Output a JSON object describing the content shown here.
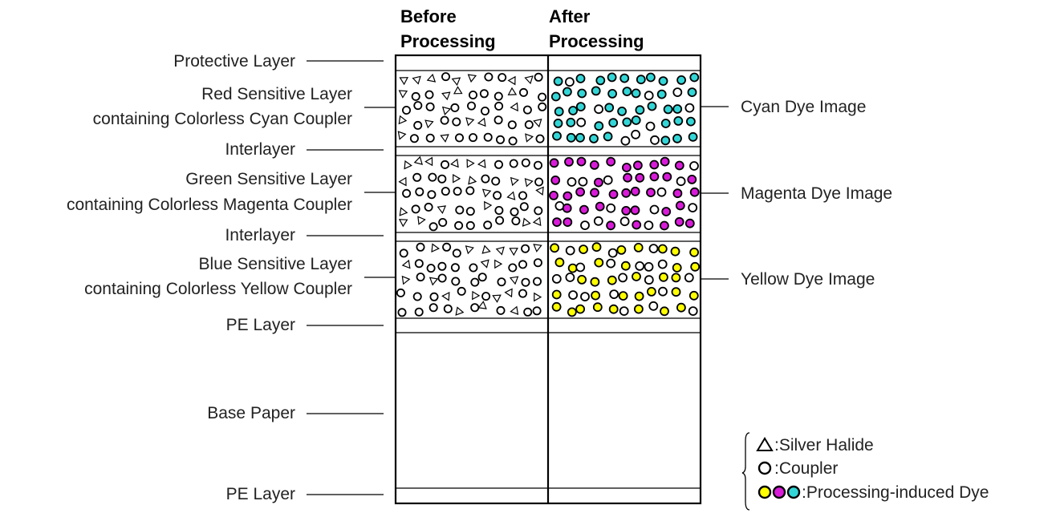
{
  "headers": {
    "before": [
      "Before",
      "Processing"
    ],
    "after": [
      "After",
      "Processing"
    ]
  },
  "left_labels": [
    {
      "lines": [
        "Protective Layer"
      ]
    },
    {
      "lines": [
        "Red Sensitive Layer",
        "containing Colorless Cyan Coupler"
      ]
    },
    {
      "lines": [
        "Interlayer"
      ]
    },
    {
      "lines": [
        "Green Sensitive Layer",
        "containing Colorless Magenta Coupler"
      ]
    },
    {
      "lines": [
        "Interlayer"
      ]
    },
    {
      "lines": [
        "Blue Sensitive Layer",
        "containing Colorless Yellow Coupler"
      ]
    },
    {
      "lines": [
        "PE Layer"
      ]
    },
    {
      "lines": [
        "Base Paper"
      ]
    },
    {
      "lines": [
        "PE Layer"
      ]
    }
  ],
  "right_labels": [
    "Cyan Dye Image",
    "Magenta Dye Image",
    "Yellow Dye Image"
  ],
  "legend": {
    "silver_halide": ":Silver Halide",
    "coupler": ":Coupler",
    "dye": ":Processing-induced Dye"
  },
  "colors": {
    "cyan": "#33d6d6",
    "magenta": "#d81bd8",
    "yellow": "#ffff00"
  }
}
